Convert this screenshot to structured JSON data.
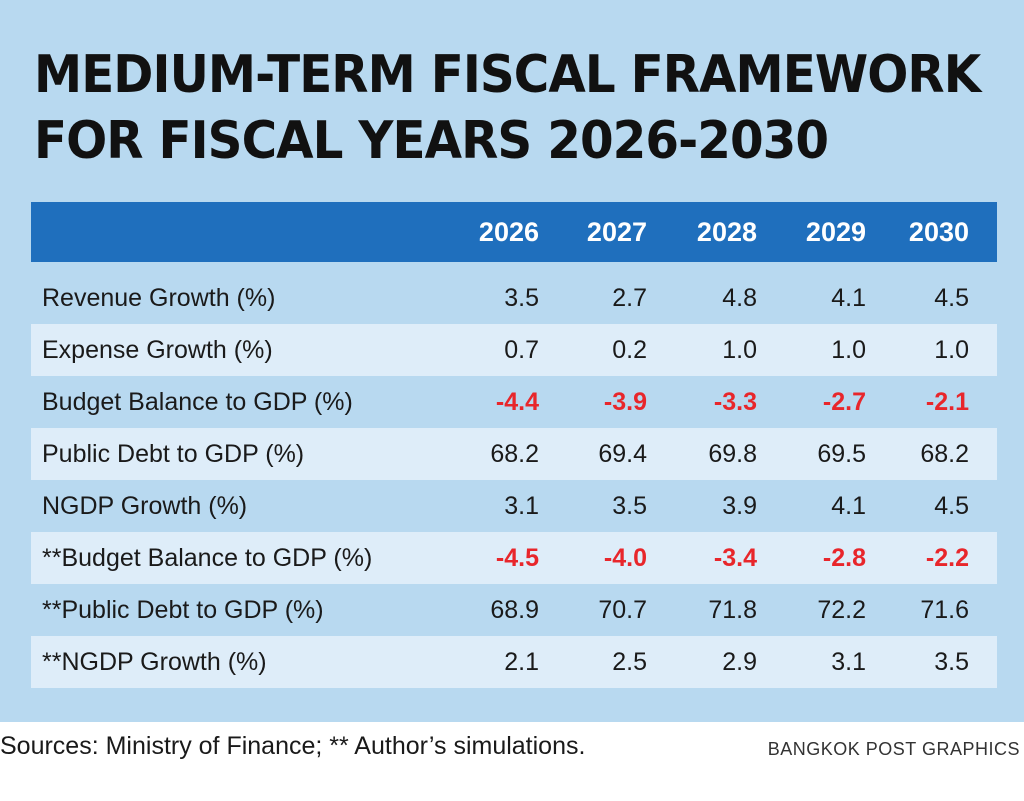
{
  "chart_data": {
    "type": "table",
    "title": {
      "line1": "MEDIUM-TERM FISCAL FRAMEWORK",
      "line2": "FOR FISCAL YEARS 2026-2030"
    },
    "columns": [
      "2026",
      "2027",
      "2028",
      "2029",
      "2030"
    ],
    "rows": [
      {
        "label": "Revenue Growth (%)",
        "values": [
          "3.5",
          "2.7",
          "4.8",
          "4.1",
          "4.5"
        ]
      },
      {
        "label": "Expense Growth (%)",
        "values": [
          "0.7",
          "0.2",
          "1.0",
          "1.0",
          "1.0"
        ]
      },
      {
        "label": "Budget Balance to GDP (%)",
        "values": [
          "-4.4",
          "-3.9",
          "-3.3",
          "-2.7",
          "-2.1"
        ]
      },
      {
        "label": "Public Debt to GDP (%)",
        "values": [
          "68.2",
          "69.4",
          "69.8",
          "69.5",
          "68.2"
        ]
      },
      {
        "label": "NGDP Growth (%)",
        "values": [
          "3.1",
          "3.5",
          "3.9",
          "4.1",
          "4.5"
        ]
      },
      {
        "label": "**Budget Balance to GDP (%)",
        "values": [
          "-4.5",
          "-4.0",
          "-3.4",
          "-2.8",
          "-2.2"
        ]
      },
      {
        "label": "**Public Debt to GDP (%)",
        "values": [
          "68.9",
          "70.7",
          "71.8",
          "72.2",
          "71.6"
        ]
      },
      {
        "label": "**NGDP Growth (%)",
        "values": [
          "2.1",
          "2.5",
          "2.9",
          "3.1",
          "3.5"
        ]
      }
    ],
    "negative_color": "#e8262b",
    "header_color": "#1f6fbd"
  },
  "footer": {
    "sources": "Sources: Ministry of Finance; ** Author’s simulations.",
    "credit": "BANGKOK POST GRAPHICS"
  }
}
